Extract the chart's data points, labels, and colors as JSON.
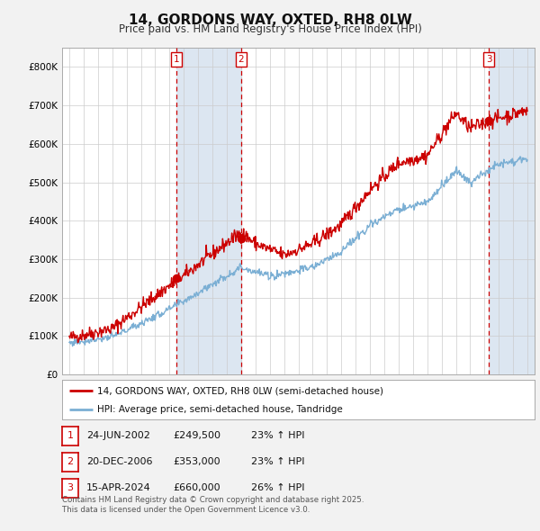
{
  "title": "14, GORDONS WAY, OXTED, RH8 0LW",
  "subtitle": "Price paid vs. HM Land Registry's House Price Index (HPI)",
  "legend_line1": "14, GORDONS WAY, OXTED, RH8 0LW (semi-detached house)",
  "legend_line2": "HPI: Average price, semi-detached house, Tandridge",
  "footer1": "Contains HM Land Registry data © Crown copyright and database right 2025.",
  "footer2": "This data is licensed under the Open Government Licence v3.0.",
  "transactions": [
    {
      "num": 1,
      "date": "24-JUN-2002",
      "price": "£249,500",
      "hpi": "23% ↑ HPI",
      "year": 2002.5
    },
    {
      "num": 2,
      "date": "20-DEC-2006",
      "price": "£353,000",
      "hpi": "23% ↑ HPI",
      "year": 2007.0
    },
    {
      "num": 3,
      "date": "15-APR-2024",
      "price": "£660,000",
      "hpi": "26% ↑ HPI",
      "year": 2024.3
    }
  ],
  "price_color": "#cc0000",
  "hpi_color": "#7bafd4",
  "shade_color": "#dce6f1",
  "vline_color": "#cc0000",
  "ylim": [
    0,
    850000
  ],
  "yticks": [
    0,
    100000,
    200000,
    300000,
    400000,
    500000,
    600000,
    700000,
    800000
  ],
  "xlim": [
    1994.5,
    2027.5
  ],
  "xticks": [
    1995,
    1996,
    1997,
    1998,
    1999,
    2000,
    2001,
    2002,
    2003,
    2004,
    2005,
    2006,
    2007,
    2008,
    2009,
    2010,
    2011,
    2012,
    2013,
    2014,
    2015,
    2016,
    2017,
    2018,
    2019,
    2020,
    2021,
    2022,
    2023,
    2024,
    2025,
    2026,
    2027
  ],
  "background_color": "#f2f2f2",
  "plot_bg_color": "#ffffff",
  "grid_color": "#cccccc"
}
